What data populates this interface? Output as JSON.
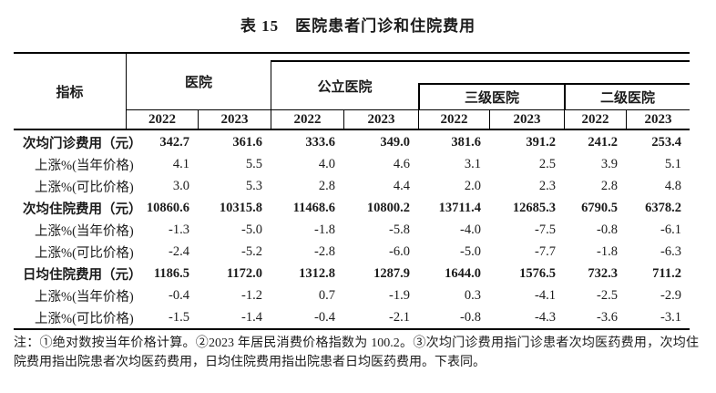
{
  "title": "表 15　医院患者门诊和住院费用",
  "table": {
    "corner_label": "指标",
    "groups": {
      "hospital": "医院",
      "public": "公立医院",
      "tertiary": "三级医院",
      "secondary": "二级医院"
    },
    "years": [
      "2022",
      "2023",
      "2022",
      "2023",
      "2022",
      "2023",
      "2022",
      "2023"
    ],
    "rows": [
      {
        "label": "次均门诊费用（元）",
        "bold": true,
        "values": [
          "342.7",
          "361.6",
          "333.6",
          "349.0",
          "381.6",
          "391.2",
          "241.2",
          "253.4"
        ]
      },
      {
        "label": "上涨%(当年价格)",
        "bold": false,
        "values": [
          "4.1",
          "5.5",
          "4.0",
          "4.6",
          "3.1",
          "2.5",
          "3.9",
          "5.1"
        ]
      },
      {
        "label": "上涨%(可比价格)",
        "bold": false,
        "values": [
          "3.0",
          "5.3",
          "2.8",
          "4.4",
          "2.0",
          "2.3",
          "2.8",
          "4.8"
        ]
      },
      {
        "label": "次均住院费用（元）",
        "bold": true,
        "values": [
          "10860.6",
          "10315.8",
          "11468.6",
          "10800.2",
          "13711.4",
          "12685.3",
          "6790.5",
          "6378.2"
        ]
      },
      {
        "label": "上涨%(当年价格)",
        "bold": false,
        "values": [
          "-1.3",
          "-5.0",
          "-1.8",
          "-5.8",
          "-4.0",
          "-7.5",
          "-0.8",
          "-6.1"
        ]
      },
      {
        "label": "上涨%(可比价格)",
        "bold": false,
        "values": [
          "-2.4",
          "-5.2",
          "-2.8",
          "-6.0",
          "-5.0",
          "-7.7",
          "-1.8",
          "-6.3"
        ]
      },
      {
        "label": "日均住院费用（元）",
        "bold": true,
        "values": [
          "1186.5",
          "1172.0",
          "1312.8",
          "1287.9",
          "1644.0",
          "1576.5",
          "732.3",
          "711.2"
        ]
      },
      {
        "label": "上涨%(当年价格)",
        "bold": false,
        "values": [
          "-0.4",
          "-1.2",
          "0.7",
          "-1.9",
          "0.3",
          "-4.1",
          "-2.5",
          "-2.9"
        ]
      },
      {
        "label": "上涨%(可比价格)",
        "bold": false,
        "values": [
          "-1.5",
          "-1.4",
          "-0.4",
          "-2.1",
          "-0.8",
          "-4.3",
          "-3.6",
          "-3.1"
        ]
      }
    ]
  },
  "footnote": "注：①绝对数按当年价格计算。②2023 年居民消费价格指数为 100.2。③次均门诊费用指门诊患者次均医药费用，次均住院费用指出院患者次均医药费用，日均住院费用指出院患者日均医药费用。下表同。"
}
